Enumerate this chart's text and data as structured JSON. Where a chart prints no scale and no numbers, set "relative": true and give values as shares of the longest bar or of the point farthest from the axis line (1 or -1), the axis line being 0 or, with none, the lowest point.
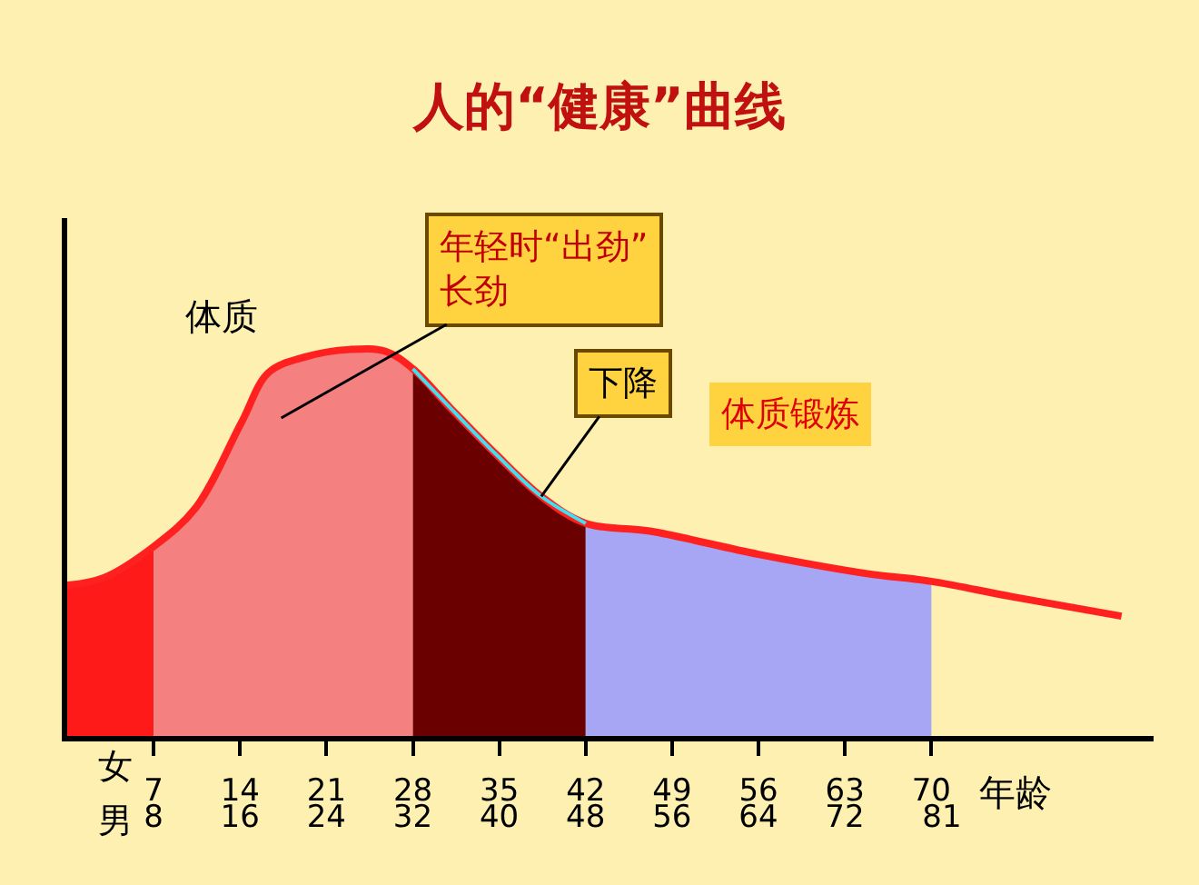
{
  "chart_data": {
    "type": "area",
    "title": "人的“健康”曲线",
    "xlabel": "年龄",
    "ylabel": "体质",
    "relative": true,
    "xlim": [
      0,
      88
    ],
    "xticks": [
      7,
      14,
      21,
      28,
      35,
      42,
      49,
      56,
      63,
      70
    ],
    "x2lim": [
      0,
      100.6
    ],
    "x2ticks": [
      8,
      16,
      24,
      32,
      40,
      48,
      56,
      64,
      72,
      81
    ],
    "annotations": [
      "年轻时“出劲”\n长劲",
      {
        "text": "下降",
        "x": 38.4,
        "y": 0.62
      },
      "体质锻炼",
      "女",
      "男"
    ],
    "series": [
      {
        "color": "#ff1a1a",
        "x": [
          0,
          3,
          7
        ],
        "values": [
          0.39,
          0.41,
          0.49
        ]
      },
      {
        "color": "#f58080",
        "x": [
          7,
          10.4,
          14.1,
          16.3,
          19.2,
          22.9,
          25.8,
          28
        ],
        "values": [
          0.49,
          0.59,
          0.81,
          0.94,
          0.98,
          1.0,
          0.995,
          0.95
        ]
      },
      {
        "color": "#6b0000",
        "x": [
          28,
          31,
          34.7,
          38.4,
          42
        ],
        "values": [
          0.95,
          0.85,
          0.73,
          0.62,
          0.55
        ]
      },
      {
        "color": "#a6a6f5",
        "x": [
          42,
          47.2,
          56,
          64.8,
          70
        ],
        "values": [
          0.55,
          0.53,
          0.47,
          0.42,
          0.4
        ]
      },
      {
        "type": "line",
        "color": "#ff2020",
        "x": [
          0,
          3,
          7,
          10.4,
          14.1,
          16.3,
          19.2,
          22.9,
          25.8,
          28,
          31,
          34.7,
          38.4,
          42,
          47.2,
          56,
          64.8,
          70,
          76.6,
          85.4
        ],
        "values": [
          0.39,
          0.41,
          0.49,
          0.59,
          0.81,
          0.94,
          0.98,
          1.0,
          0.995,
          0.95,
          0.85,
          0.73,
          0.62,
          0.55,
          0.53,
          0.47,
          0.42,
          0.4,
          0.36,
          0.31
        ]
      },
      {
        "type": "line",
        "color": "#40e0f0",
        "x": [
          28,
          31,
          34.7,
          38.4,
          42
        ],
        "values": [
          0.95,
          0.85,
          0.73,
          0.62,
          0.55
        ]
      }
    ]
  }
}
